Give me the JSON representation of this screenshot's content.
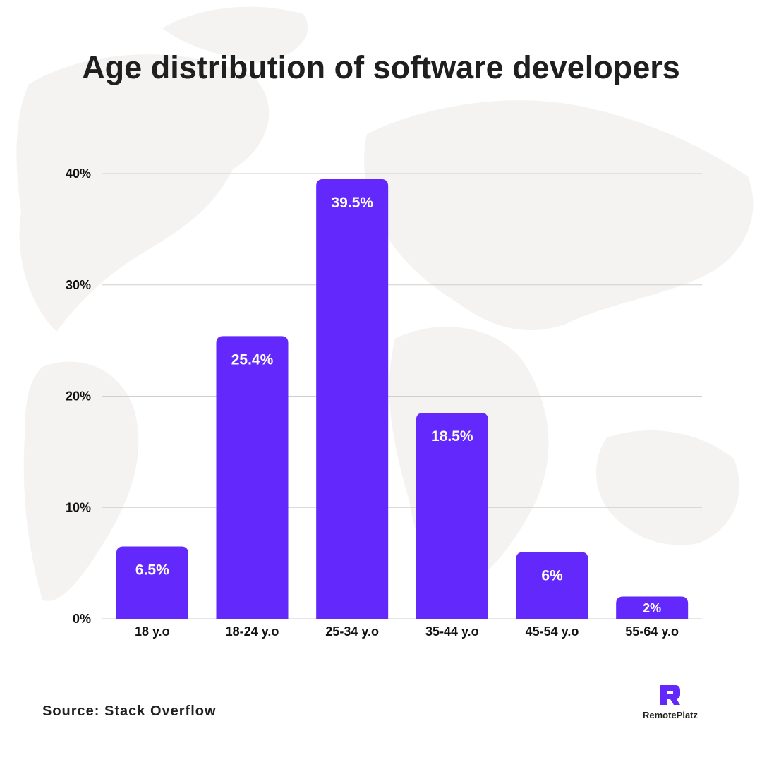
{
  "title": "Age distribution of software developers",
  "source": "Source: Stack Overflow",
  "brand": {
    "name": "RemotePlatz",
    "icon": "remoteplatz-logo-icon"
  },
  "colors": {
    "bar": "#6228fc",
    "bar_label": "#ffffff",
    "grid": "#cfcfcf",
    "axis_text": "#111111",
    "title": "#1f1f1f",
    "map": "#f3f2f1"
  },
  "chart_data": {
    "type": "bar",
    "title": "Age distribution of software developers",
    "categories": [
      "18 y.o",
      "18-24 y.o",
      "25-34 y.o",
      "35-44 y.o",
      "45-54 y.o",
      "55-64 y.o"
    ],
    "values": [
      6.5,
      25.4,
      39.5,
      18.5,
      6,
      2
    ],
    "value_labels": [
      "6.5%",
      "25.4%",
      "39.5%",
      "18.5%",
      "6%",
      "2%"
    ],
    "yticks": [
      0,
      10,
      20,
      30,
      40
    ],
    "ytick_labels": [
      "0%",
      "10%",
      "20%",
      "30%",
      "40%"
    ],
    "ylim": [
      0,
      40
    ],
    "xlabel": "",
    "ylabel": "",
    "grid": true,
    "legend": "none"
  }
}
